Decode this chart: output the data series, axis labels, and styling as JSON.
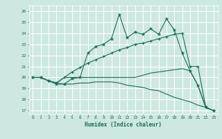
{
  "xlabel": "Humidex (Indice chaleur)",
  "bg_color": "#cde8e0",
  "grid_color": "#ffffff",
  "line_color": "#1a6b5a",
  "xlim": [
    -0.5,
    23.5
  ],
  "ylim": [
    16.7,
    26.5
  ],
  "yticks": [
    17,
    18,
    19,
    20,
    21,
    22,
    23,
    24,
    25,
    26
  ],
  "xticks": [
    0,
    1,
    2,
    3,
    4,
    5,
    6,
    7,
    8,
    9,
    10,
    11,
    12,
    13,
    14,
    15,
    16,
    17,
    18,
    19,
    20,
    21,
    22,
    23
  ],
  "line1_x": [
    0,
    1,
    2,
    3,
    4,
    5,
    6,
    7,
    8,
    9,
    10,
    11,
    12,
    13,
    14,
    15,
    16,
    17,
    18,
    19,
    20,
    21,
    22,
    23
  ],
  "line1_y": [
    20.0,
    20.0,
    19.7,
    19.4,
    19.4,
    19.9,
    20.0,
    22.2,
    22.8,
    23.0,
    23.5,
    25.7,
    23.6,
    24.1,
    23.9,
    24.4,
    23.9,
    25.3,
    24.3,
    22.2,
    20.6,
    19.3,
    17.3,
    17.0
  ],
  "line2_x": [
    0,
    1,
    2,
    3,
    4,
    5,
    6,
    7,
    8,
    9,
    10,
    11,
    12,
    13,
    14,
    15,
    16,
    17,
    18,
    19,
    20,
    21,
    22,
    23
  ],
  "line2_y": [
    20.0,
    20.0,
    19.7,
    19.5,
    20.0,
    20.5,
    20.9,
    21.3,
    21.6,
    21.9,
    22.2,
    22.5,
    22.7,
    23.0,
    23.1,
    23.3,
    23.5,
    23.7,
    23.9,
    24.0,
    21.0,
    21.0,
    17.3,
    17.0
  ],
  "line3_x": [
    0,
    1,
    2,
    3,
    4,
    5,
    6,
    7,
    8,
    9,
    10,
    11,
    12,
    13,
    14,
    15,
    16,
    17,
    18,
    19,
    20,
    21,
    22,
    23
  ],
  "line3_y": [
    20.0,
    20.0,
    19.7,
    19.5,
    20.0,
    20.0,
    20.0,
    20.0,
    20.0,
    20.0,
    20.0,
    20.0,
    20.0,
    20.0,
    20.2,
    20.4,
    20.5,
    20.6,
    20.7,
    20.8,
    20.6,
    19.3,
    17.3,
    17.0
  ],
  "line4_x": [
    0,
    1,
    2,
    3,
    4,
    5,
    6,
    7,
    8,
    9,
    10,
    11,
    12,
    13,
    14,
    15,
    16,
    17,
    18,
    19,
    20,
    21,
    22,
    23
  ],
  "line4_y": [
    20.0,
    20.0,
    19.7,
    19.5,
    19.4,
    19.4,
    19.5,
    19.5,
    19.6,
    19.6,
    19.6,
    19.5,
    19.3,
    19.2,
    19.1,
    18.9,
    18.8,
    18.5,
    18.2,
    18.0,
    17.8,
    17.5,
    17.3,
    17.0
  ]
}
